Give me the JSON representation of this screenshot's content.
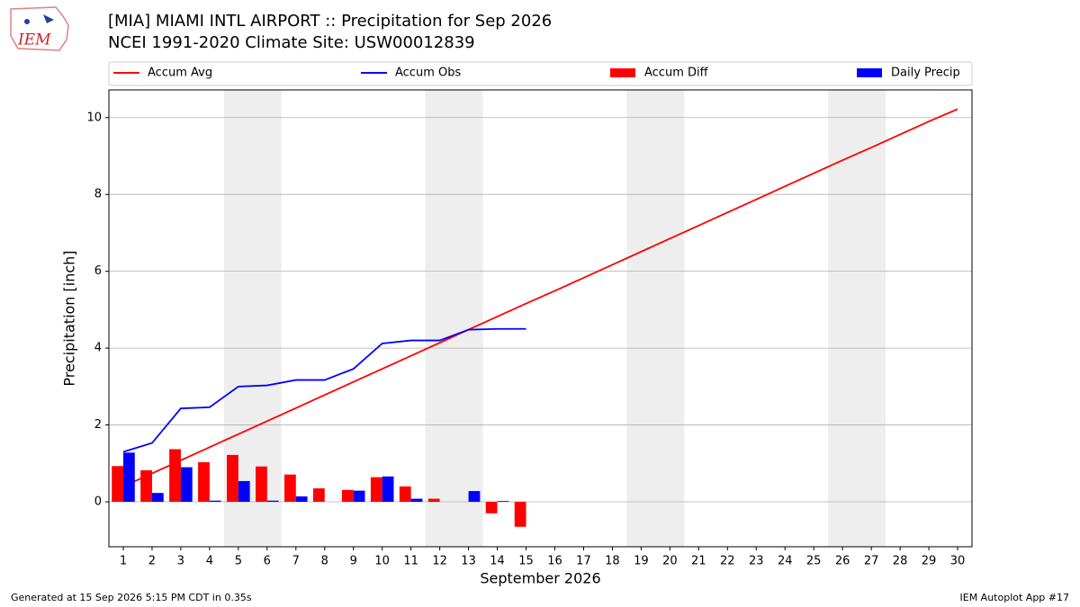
{
  "logo_text": "IEM",
  "footer_left": "Generated at 15 Sep 2026 5:15 PM CDT in 0.35s",
  "footer_right": "IEM Autoplot App #17",
  "chart_data": {
    "type": "bar",
    "title": "[MIA] MIAMI INTL AIRPORT :: Precipitation for Sep 2026",
    "subtitle": "NCEI 1991-2020 Climate Site: USW00012839",
    "xlabel": "September 2026",
    "ylabel": "Precipitation [inch]",
    "x": [
      1,
      2,
      3,
      4,
      5,
      6,
      7,
      8,
      9,
      10,
      11,
      12,
      13,
      14,
      15,
      16,
      17,
      18,
      19,
      20,
      21,
      22,
      23,
      24,
      25,
      26,
      27,
      28,
      29,
      30
    ],
    "xlim": [
      0.5,
      30.5
    ],
    "xticks": [
      1,
      2,
      3,
      4,
      5,
      6,
      7,
      8,
      9,
      10,
      11,
      12,
      13,
      14,
      15,
      16,
      17,
      18,
      19,
      20,
      21,
      22,
      23,
      24,
      25,
      26,
      27,
      28,
      29,
      30
    ],
    "ylim": [
      -1.17,
      10.72
    ],
    "yticks": [
      0,
      2,
      4,
      6,
      8,
      10
    ],
    "grid": true,
    "shaded_ranges": [
      [
        4.5,
        6.5
      ],
      [
        11.5,
        13.5
      ],
      [
        18.5,
        20.5
      ],
      [
        25.5,
        27.5
      ]
    ],
    "series": [
      {
        "name": "Accum Avg",
        "type": "line",
        "color": "#ff0000",
        "values": [
          0.4,
          0.74,
          1.08,
          1.42,
          1.76,
          2.1,
          2.44,
          2.78,
          3.12,
          3.46,
          3.8,
          4.14,
          4.48,
          4.82,
          5.16,
          5.49,
          5.83,
          6.17,
          6.51,
          6.85,
          7.19,
          7.53,
          7.87,
          8.21,
          8.55,
          8.89,
          9.22,
          9.56,
          9.9,
          10.22
        ]
      },
      {
        "name": "Accum Obs",
        "type": "line",
        "color": "#0000ff",
        "values": [
          1.3,
          1.53,
          2.43,
          2.46,
          3.0,
          3.03,
          3.17,
          3.17,
          3.46,
          4.12,
          4.2,
          4.2,
          4.48,
          4.5,
          4.5,
          null,
          null,
          null,
          null,
          null,
          null,
          null,
          null,
          null,
          null,
          null,
          null,
          null,
          null,
          null
        ]
      },
      {
        "name": "Accum Diff",
        "type": "bar",
        "color": "#ff0000",
        "values": [
          0.93,
          0.82,
          1.37,
          1.03,
          1.22,
          0.92,
          0.71,
          0.35,
          0.31,
          0.64,
          0.4,
          0.08,
          0.0,
          -0.3,
          -0.65,
          null,
          null,
          null,
          null,
          null,
          null,
          null,
          null,
          null,
          null,
          null,
          null,
          null,
          null,
          null
        ]
      },
      {
        "name": "Daily Precip",
        "type": "bar",
        "color": "#0000ff",
        "values": [
          1.28,
          0.23,
          0.9,
          0.03,
          0.54,
          0.03,
          0.14,
          0.0,
          0.29,
          0.66,
          0.08,
          0.0,
          0.28,
          0.02,
          0.0,
          null,
          null,
          null,
          null,
          null,
          null,
          null,
          null,
          null,
          null,
          null,
          null,
          null,
          null,
          null
        ]
      }
    ]
  }
}
